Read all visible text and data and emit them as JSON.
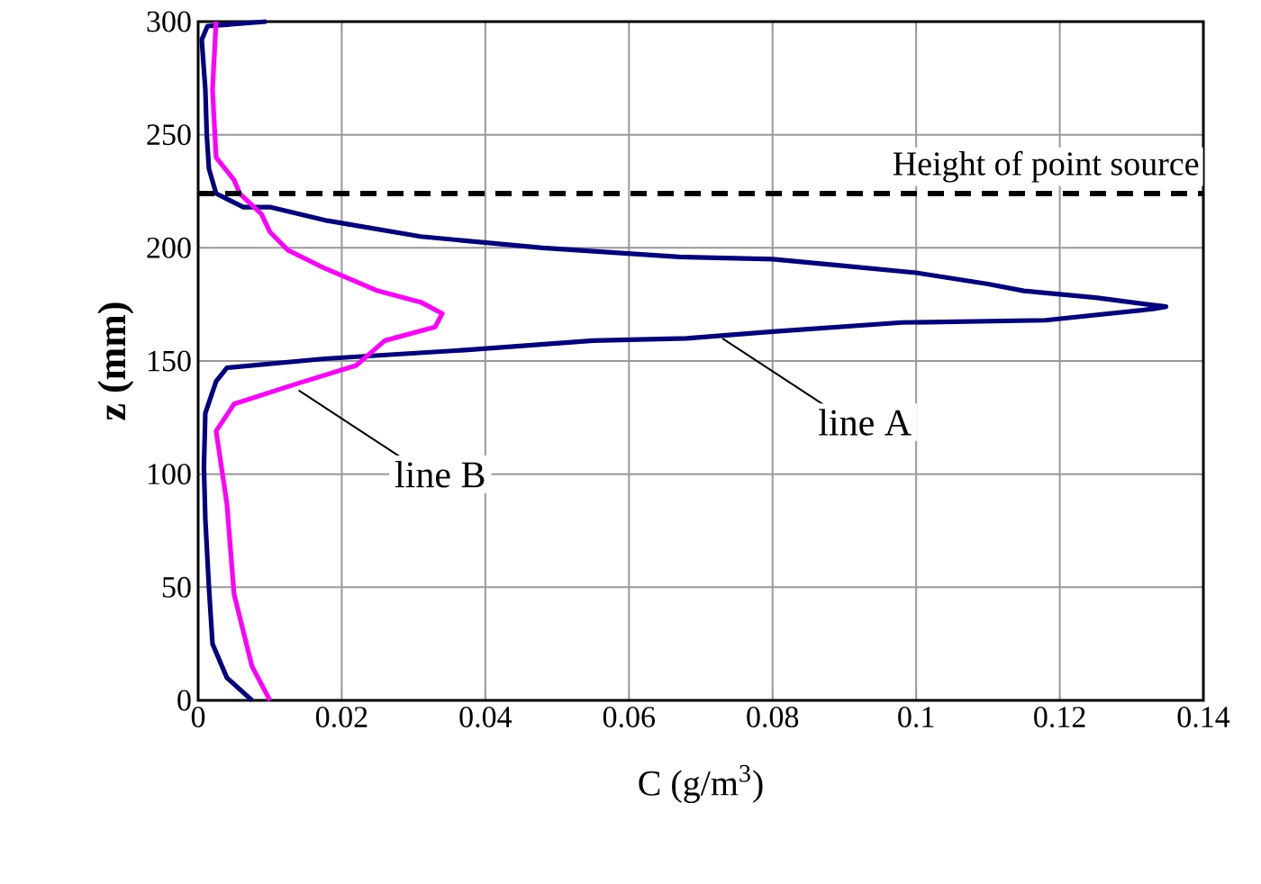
{
  "chart_data": {
    "type": "line",
    "xlabel": "C (g/m$^{3}$)",
    "ylabel": "z (mm)",
    "xlim": [
      0,
      0.14
    ],
    "ylim": [
      0,
      300
    ],
    "xticks": [
      0,
      0.02,
      0.04,
      0.06,
      0.08,
      0.1,
      0.12,
      0.14
    ],
    "yticks": [
      0,
      50,
      100,
      150,
      200,
      250,
      300
    ],
    "grid": true,
    "marker": "none",
    "line_style": "solid",
    "series": [
      {
        "color": "#000080",
        "x": [
          0.0095,
          0.0013,
          0.0005,
          0.001,
          0.0012,
          0.0015,
          0.0025,
          0.0063,
          0.01,
          0.018,
          0.031,
          0.048,
          0.067,
          0.08,
          0.09,
          0.1,
          0.11,
          0.115,
          0.125,
          0.1348,
          0.133,
          0.118,
          0.098,
          0.08,
          0.068,
          0.055,
          0.038,
          0.0176,
          0.004,
          0.0025,
          0.001,
          0.0008,
          0.001,
          0.0015,
          0.002,
          0.004,
          0.0075
        ],
        "values": [
          300,
          298,
          292,
          270,
          250,
          235,
          224,
          218,
          218,
          212,
          205,
          200,
          196,
          195,
          192,
          189,
          184,
          181,
          178,
          174,
          173,
          168,
          167,
          163,
          160,
          159,
          155,
          151,
          147,
          141,
          127,
          103,
          80,
          50,
          25,
          10,
          0
        ]
      },
      {
        "color": "#ff00ff",
        "x": [
          0.0025,
          0.002,
          0.0025,
          0.004,
          0.005,
          0.0058,
          0.0088,
          0.01,
          0.0125,
          0.0176,
          0.025,
          0.031,
          0.034,
          0.033,
          0.026,
          0.022,
          0.0138,
          0.005,
          0.0025,
          0.004,
          0.005,
          0.0075,
          0.01
        ],
        "values": [
          300,
          270,
          240,
          234,
          230,
          224,
          215,
          207,
          199,
          191,
          181,
          176,
          171,
          165,
          159,
          148,
          140,
          131,
          119,
          87,
          47,
          15,
          0
        ]
      }
    ],
    "ref_lines": [
      {
        "axis": "y",
        "value": 224,
        "label": "Height of point source",
        "color": "#000000",
        "line_style": "dashed"
      }
    ],
    "annotations": [
      {
        "text": "line A",
        "x": 0.073,
        "y": 160
      },
      {
        "text": "line B",
        "x": 0.014,
        "y": 137
      }
    ]
  }
}
